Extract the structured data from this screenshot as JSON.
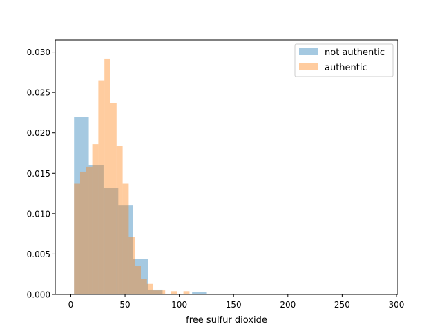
{
  "chart_data": {
    "type": "bar",
    "subtype": "histogram",
    "xlabel": "free sulfur dioxide",
    "ylabel": "",
    "xlim": [
      -14.3,
      301.3
    ],
    "ylim": [
      0,
      0.0315
    ],
    "xticks": [
      0,
      50,
      100,
      150,
      200,
      250,
      300
    ],
    "yticks": [
      0.0,
      0.005,
      0.01,
      0.015,
      0.02,
      0.025,
      0.03
    ],
    "ytick_labels": [
      "0.000",
      "0.005",
      "0.010",
      "0.015",
      "0.020",
      "0.025",
      "0.030"
    ],
    "legend_position": "top-right",
    "grid": false,
    "series": [
      {
        "name": "not authentic",
        "color": "#1f77b4",
        "opacity": 0.4,
        "bins": [
          {
            "x0": 3,
            "x1": 16.6,
            "value": 0.022
          },
          {
            "x0": 16.6,
            "x1": 30.2,
            "value": 0.016
          },
          {
            "x0": 30.2,
            "x1": 43.8,
            "value": 0.0132
          },
          {
            "x0": 43.8,
            "x1": 57.4,
            "value": 0.011
          },
          {
            "x0": 57.4,
            "x1": 71.0,
            "value": 0.0044
          },
          {
            "x0": 71.0,
            "x1": 84.6,
            "value": 0.0006
          },
          {
            "x0": 84.6,
            "x1": 98.2,
            "value": 0.0
          },
          {
            "x0": 98.2,
            "x1": 111.8,
            "value": 0.0
          },
          {
            "x0": 111.8,
            "x1": 125.4,
            "value": 0.0003
          }
        ]
      },
      {
        "name": "authentic",
        "color": "#ff7f0e",
        "opacity": 0.4,
        "bins": [
          {
            "x0": 3,
            "x1": 8.6,
            "value": 0.0137
          },
          {
            "x0": 8.6,
            "x1": 14.2,
            "value": 0.0152
          },
          {
            "x0": 14.2,
            "x1": 19.8,
            "value": 0.0158
          },
          {
            "x0": 19.8,
            "x1": 25.4,
            "value": 0.0186
          },
          {
            "x0": 25.4,
            "x1": 31.0,
            "value": 0.0265
          },
          {
            "x0": 31.0,
            "x1": 36.6,
            "value": 0.0292
          },
          {
            "x0": 36.6,
            "x1": 42.2,
            "value": 0.0237
          },
          {
            "x0": 42.2,
            "x1": 47.8,
            "value": 0.0184
          },
          {
            "x0": 47.8,
            "x1": 53.4,
            "value": 0.0137
          },
          {
            "x0": 53.4,
            "x1": 59.0,
            "value": 0.0071
          },
          {
            "x0": 59.0,
            "x1": 64.6,
            "value": 0.0035
          },
          {
            "x0": 64.6,
            "x1": 70.2,
            "value": 0.0019
          },
          {
            "x0": 70.2,
            "x1": 75.8,
            "value": 0.0013
          },
          {
            "x0": 75.8,
            "x1": 81.4,
            "value": 0.0005
          },
          {
            "x0": 81.4,
            "x1": 87.0,
            "value": 0.0005
          },
          {
            "x0": 87.0,
            "x1": 92.6,
            "value": 0.0
          },
          {
            "x0": 92.6,
            "x1": 98.2,
            "value": 0.0004
          },
          {
            "x0": 98.2,
            "x1": 103.8,
            "value": 0.0
          },
          {
            "x0": 103.8,
            "x1": 109.4,
            "value": 0.0004
          }
        ]
      }
    ]
  }
}
